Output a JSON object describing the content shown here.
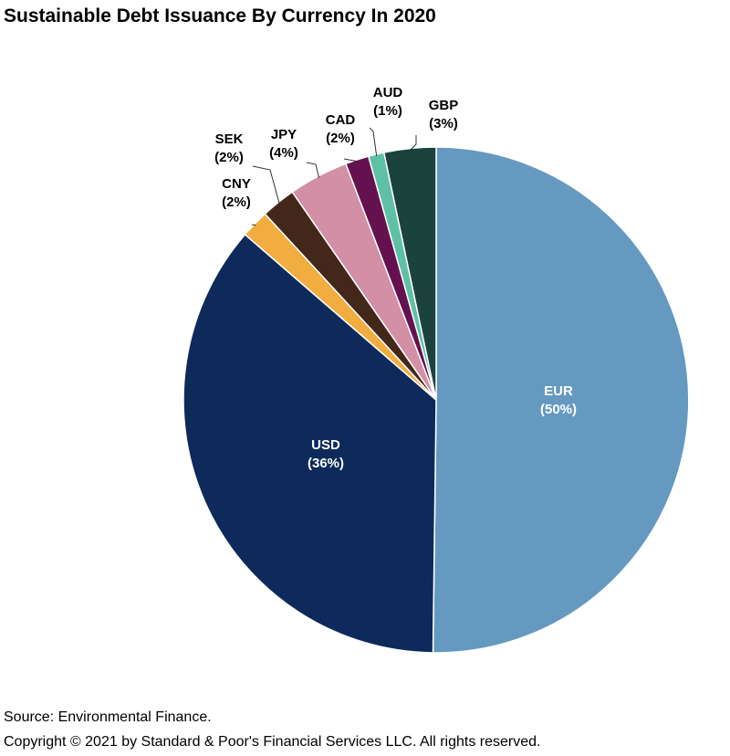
{
  "chart_data": {
    "type": "pie",
    "title": "Sustainable Debt Issuance By Currency In 2020",
    "start_angle_deg": 0,
    "direction": "clockwise",
    "slices": [
      {
        "label": "EUR",
        "value_label": "(50%)",
        "value": 50,
        "color": "#6599c0",
        "label_color": "#ffffff",
        "label_placement": "inside"
      },
      {
        "label": "USD",
        "value_label": "(36%)",
        "value": 36,
        "color": "#0d2a5b",
        "label_color": "#ffffff",
        "label_placement": "inside"
      },
      {
        "label": "CNY",
        "value_label": "(2%)",
        "value": 1.8,
        "color": "#f1ad3f",
        "label_color": "#000000",
        "label_placement": "outside"
      },
      {
        "label": "SEK",
        "value_label": "(2%)",
        "value": 2.2,
        "color": "#43271a",
        "label_color": "#000000",
        "label_placement": "outside"
      },
      {
        "label": "JPY",
        "value_label": "(4%)",
        "value": 3.8,
        "color": "#d38fa6",
        "label_color": "#000000",
        "label_placement": "outside"
      },
      {
        "label": "CAD",
        "value_label": "(2%)",
        "value": 1.5,
        "color": "#66114f",
        "label_color": "#000000",
        "label_placement": "outside"
      },
      {
        "label": "AUD",
        "value_label": "(1%)",
        "value": 1.0,
        "color": "#5ec1a6",
        "label_color": "#000000",
        "label_placement": "outside"
      },
      {
        "label": "GBP",
        "value_label": "(3%)",
        "value": 3.3,
        "color": "#1b433d",
        "label_color": "#000000",
        "label_placement": "outside"
      }
    ]
  },
  "footer": {
    "source": "Source: Environmental Finance.",
    "copyright": "Copyright © 2021 by Standard & Poor's Financial Services LLC. All rights reserved."
  }
}
